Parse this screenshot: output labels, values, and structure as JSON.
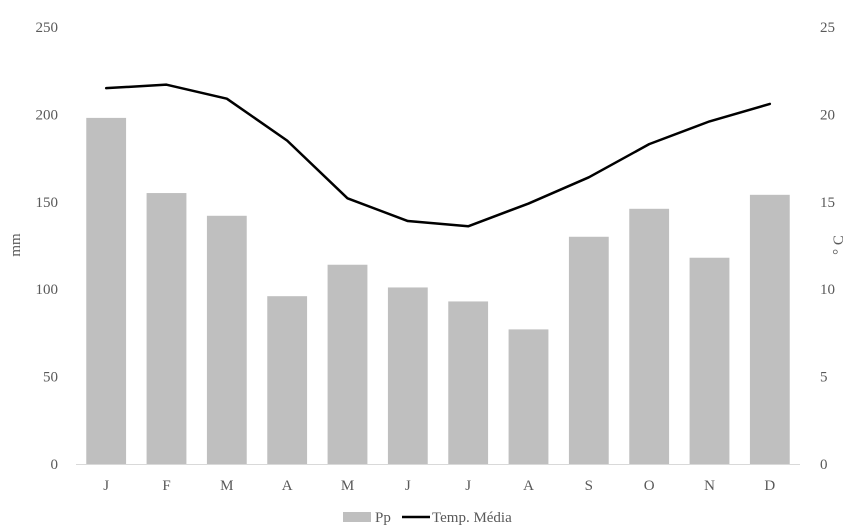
{
  "chart_data": {
    "type": "bar",
    "categories": [
      "J",
      "F",
      "M",
      "A",
      "M",
      "J",
      "J",
      "A",
      "S",
      "O",
      "N",
      "D"
    ],
    "series": [
      {
        "name": "Pp",
        "type": "bar",
        "axis": "left",
        "color": "#BFBFBF",
        "values": [
          198,
          155,
          142,
          96,
          114,
          101,
          93,
          77,
          130,
          146,
          118,
          154
        ]
      },
      {
        "name": "Temp. Média",
        "type": "line",
        "axis": "right",
        "color": "#000000",
        "values": [
          21.5,
          21.7,
          20.9,
          18.5,
          15.2,
          13.9,
          13.6,
          14.9,
          16.4,
          18.3,
          19.6,
          20.6
        ]
      }
    ],
    "ylabel": "mm",
    "y2label": "° C",
    "ylim": [
      0,
      250
    ],
    "y2lim": [
      0,
      25
    ],
    "yticks": [
      "0",
      "50",
      "100",
      "150",
      "200",
      "250"
    ],
    "y2ticks": [
      "0",
      "5",
      "10",
      "15",
      "20",
      "25"
    ],
    "grid": false,
    "legend_position": "bottom"
  }
}
